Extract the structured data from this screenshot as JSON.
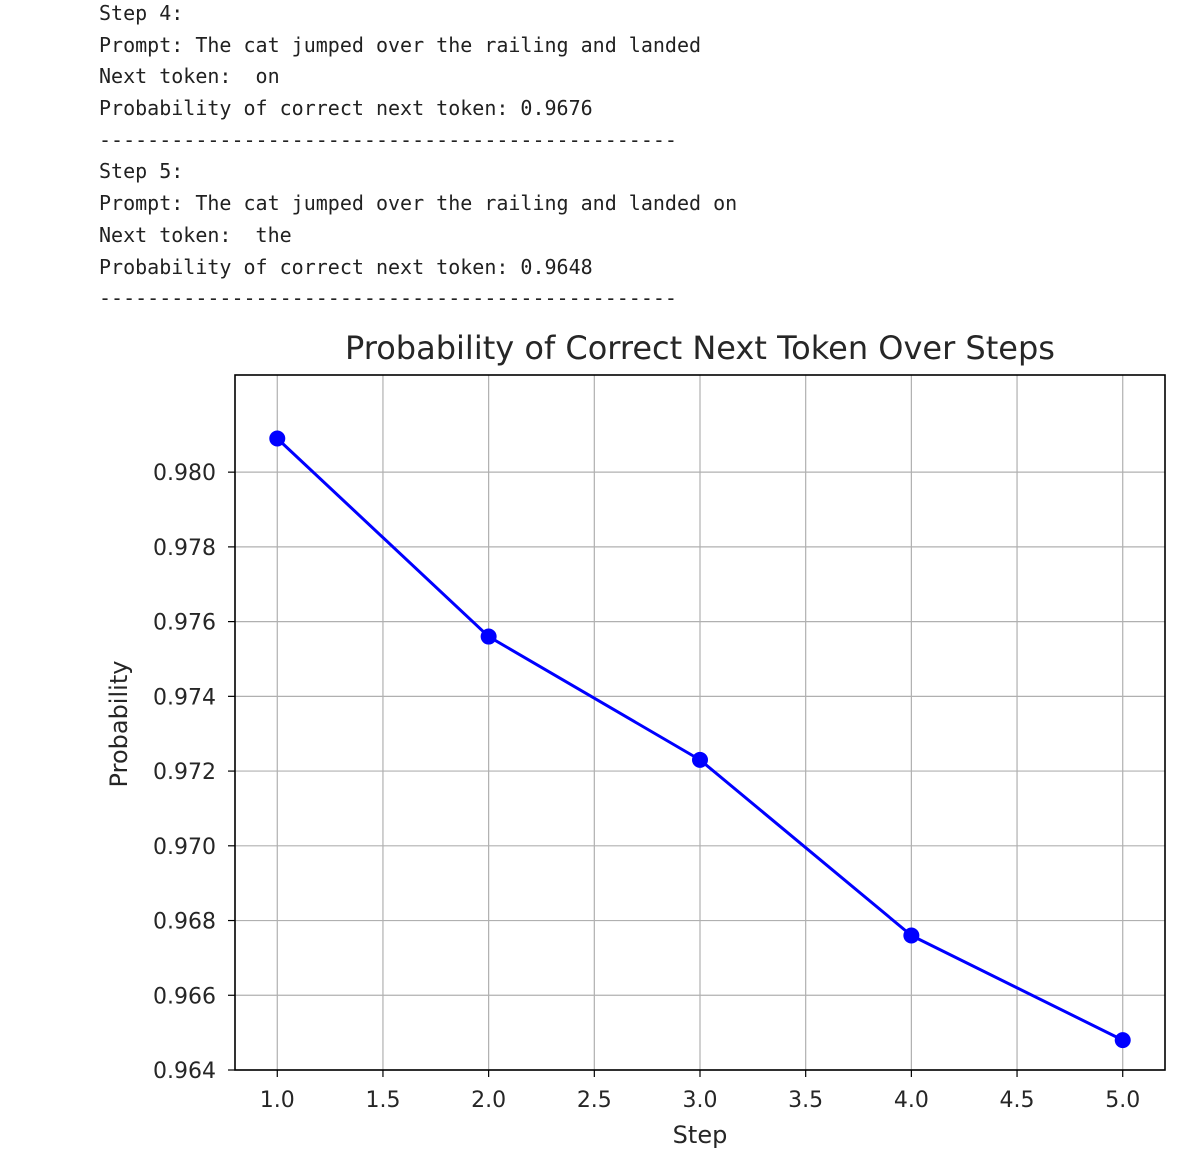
{
  "output_lines": [
    "Step 4:",
    "Prompt: The cat jumped over the railing and landed",
    "Next token:  on",
    "Probability of correct next token: 0.9676",
    "------------------------------------------------",
    "Step 5:",
    "Prompt: The cat jumped over the railing and landed on",
    "Next token:  the",
    "Probability of correct next token: 0.9648",
    "------------------------------------------------"
  ],
  "chart_data": {
    "type": "line",
    "title": "Probability of Correct Next Token Over Steps",
    "xlabel": "Step",
    "ylabel": "Probability",
    "x": [
      1,
      2,
      3,
      4,
      5
    ],
    "series": [
      {
        "values": [
          0.9809,
          0.9756,
          0.9723,
          0.9676,
          0.9648
        ],
        "color": "#0000ff",
        "marker": "circle"
      }
    ],
    "xlim": [
      0.8,
      5.2
    ],
    "ylim": [
      0.964,
      0.9826
    ],
    "xticks": [
      "1.0",
      "1.5",
      "2.0",
      "2.5",
      "3.0",
      "3.5",
      "4.0",
      "4.5",
      "5.0"
    ],
    "yticks": [
      "0.964",
      "0.966",
      "0.968",
      "0.970",
      "0.972",
      "0.974",
      "0.976",
      "0.978",
      "0.980"
    ],
    "grid": true,
    "colors": {
      "line": "#0000ff",
      "grid": "#b0b0b0",
      "axes": "#000000",
      "text": "#262626"
    }
  }
}
